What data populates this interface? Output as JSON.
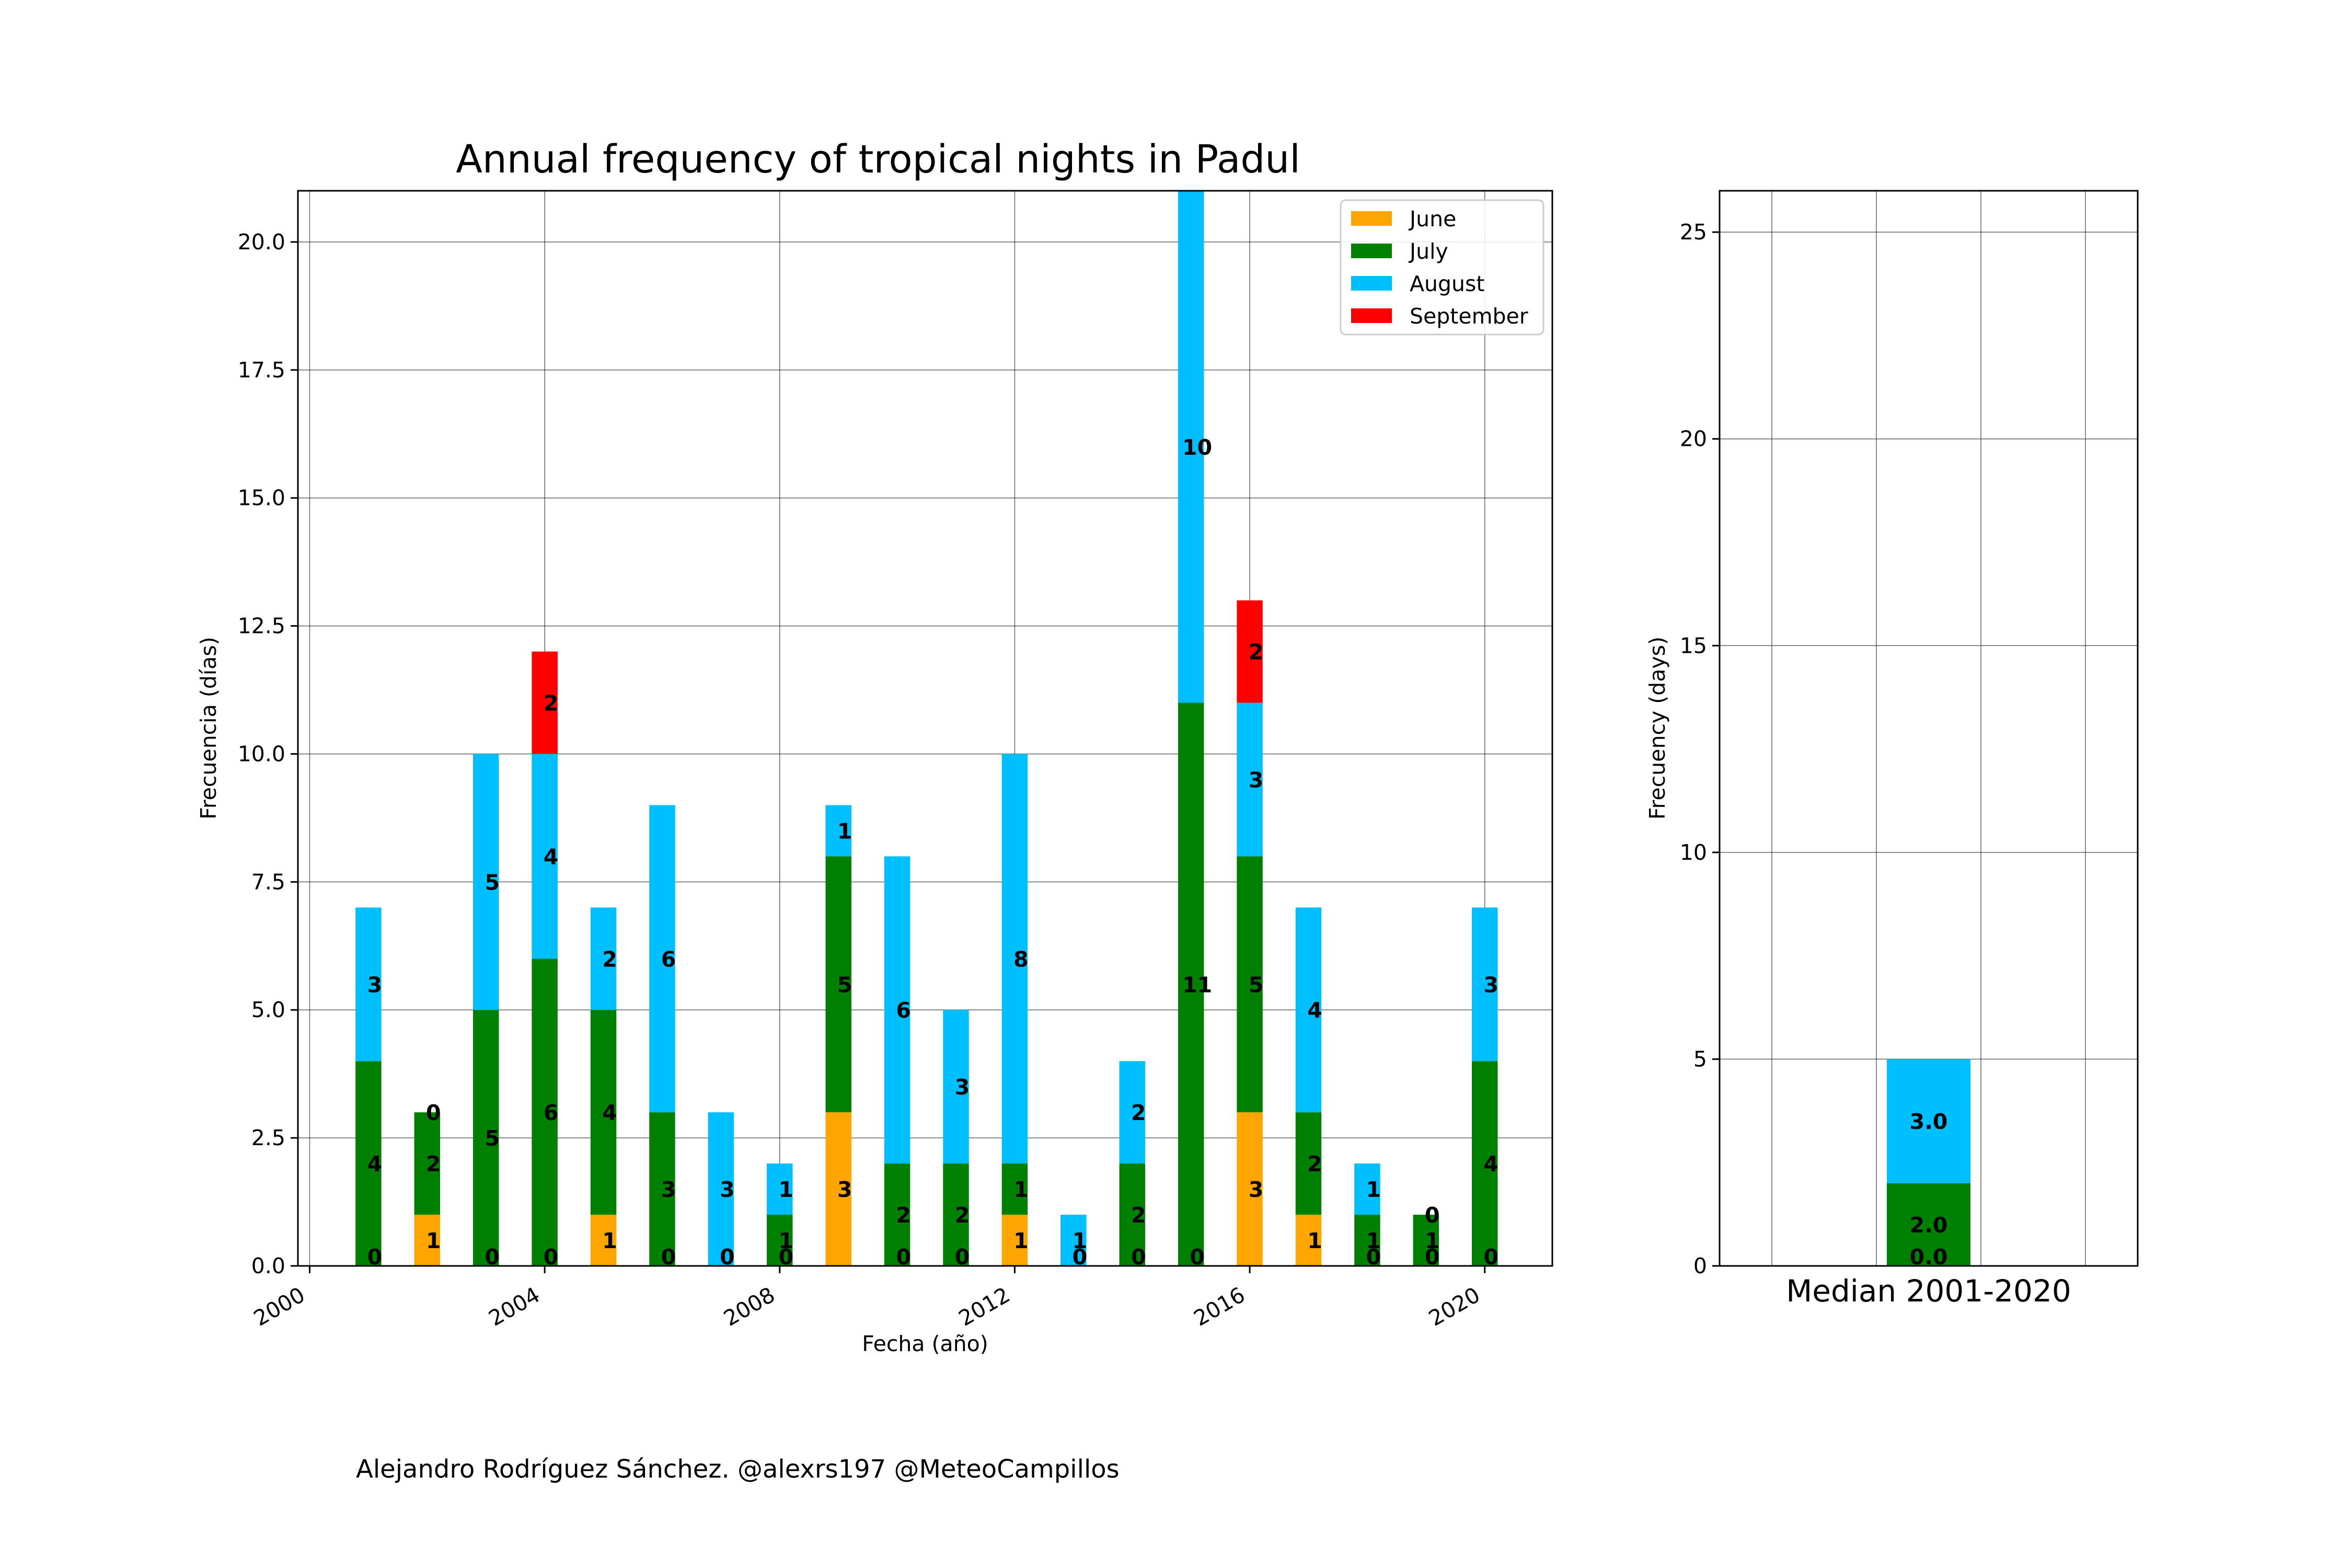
{
  "credit": "Alejandro Rodríguez Sánchez. @alexrs197 @MeteoCampillos",
  "chart_data": [
    {
      "type": "bar",
      "stacked": true,
      "title": "Annual frequency of tropical nights in Padul",
      "xlabel": "Fecha (año)",
      "ylabel": "Frecuencia (días)",
      "xlim": [
        1999.8,
        2021.15
      ],
      "ylim": [
        0,
        21
      ],
      "xticks": [
        2000,
        2004,
        2008,
        2012,
        2016,
        2020
      ],
      "yticks": [
        0,
        2.5,
        5,
        7.5,
        10,
        12.5,
        15,
        17.5,
        20
      ],
      "ytick_labels": [
        "0.0",
        "2.5",
        "5.0",
        "7.5",
        "10.0",
        "12.5",
        "15.0",
        "17.5",
        "20.0"
      ],
      "grid": true,
      "legend_position": "top-right",
      "categories": [
        2001,
        2002,
        2003,
        2004,
        2005,
        2006,
        2007,
        2008,
        2009,
        2010,
        2011,
        2012,
        2013,
        2014,
        2015,
        2016,
        2017,
        2018,
        2019,
        2020
      ],
      "series": [
        {
          "name": "June",
          "color": "#FFA500",
          "values": [
            0,
            1,
            0,
            0,
            1,
            0,
            0,
            0,
            3,
            0,
            0,
            1,
            0,
            0,
            0,
            3,
            1,
            0,
            0,
            0
          ]
        },
        {
          "name": "July",
          "color": "#008000",
          "values": [
            4,
            2,
            5,
            6,
            4,
            3,
            0,
            1,
            5,
            2,
            2,
            1,
            0,
            2,
            11,
            5,
            2,
            1,
            1,
            4
          ]
        },
        {
          "name": "August",
          "color": "#00BFFF",
          "values": [
            3,
            0,
            5,
            4,
            2,
            6,
            3,
            1,
            1,
            6,
            3,
            8,
            1,
            2,
            10,
            3,
            4,
            1,
            0,
            3
          ]
        },
        {
          "name": "September",
          "color": "#FF0000",
          "values": [
            0,
            0,
            0,
            2,
            0,
            0,
            0,
            0,
            0,
            0,
            0,
            0,
            0,
            0,
            0,
            2,
            0,
            0,
            0,
            0
          ]
        }
      ]
    },
    {
      "type": "bar",
      "stacked": true,
      "xlabel": "Median 2001-2020",
      "ylabel": "Frecuency (days)",
      "ylim": [
        0,
        26
      ],
      "yticks": [
        0,
        5,
        10,
        15,
        20,
        25
      ],
      "grid": true,
      "series": [
        {
          "name": "June",
          "color": "#FFA500",
          "value": 0.0,
          "label": "0.0"
        },
        {
          "name": "July",
          "color": "#008000",
          "value": 2.0,
          "label": "2.0"
        },
        {
          "name": "August",
          "color": "#00BFFF",
          "value": 3.0,
          "label": "3.0"
        },
        {
          "name": "September",
          "color": "#FF0000",
          "value": 0.0,
          "label": "0.0"
        }
      ]
    }
  ]
}
